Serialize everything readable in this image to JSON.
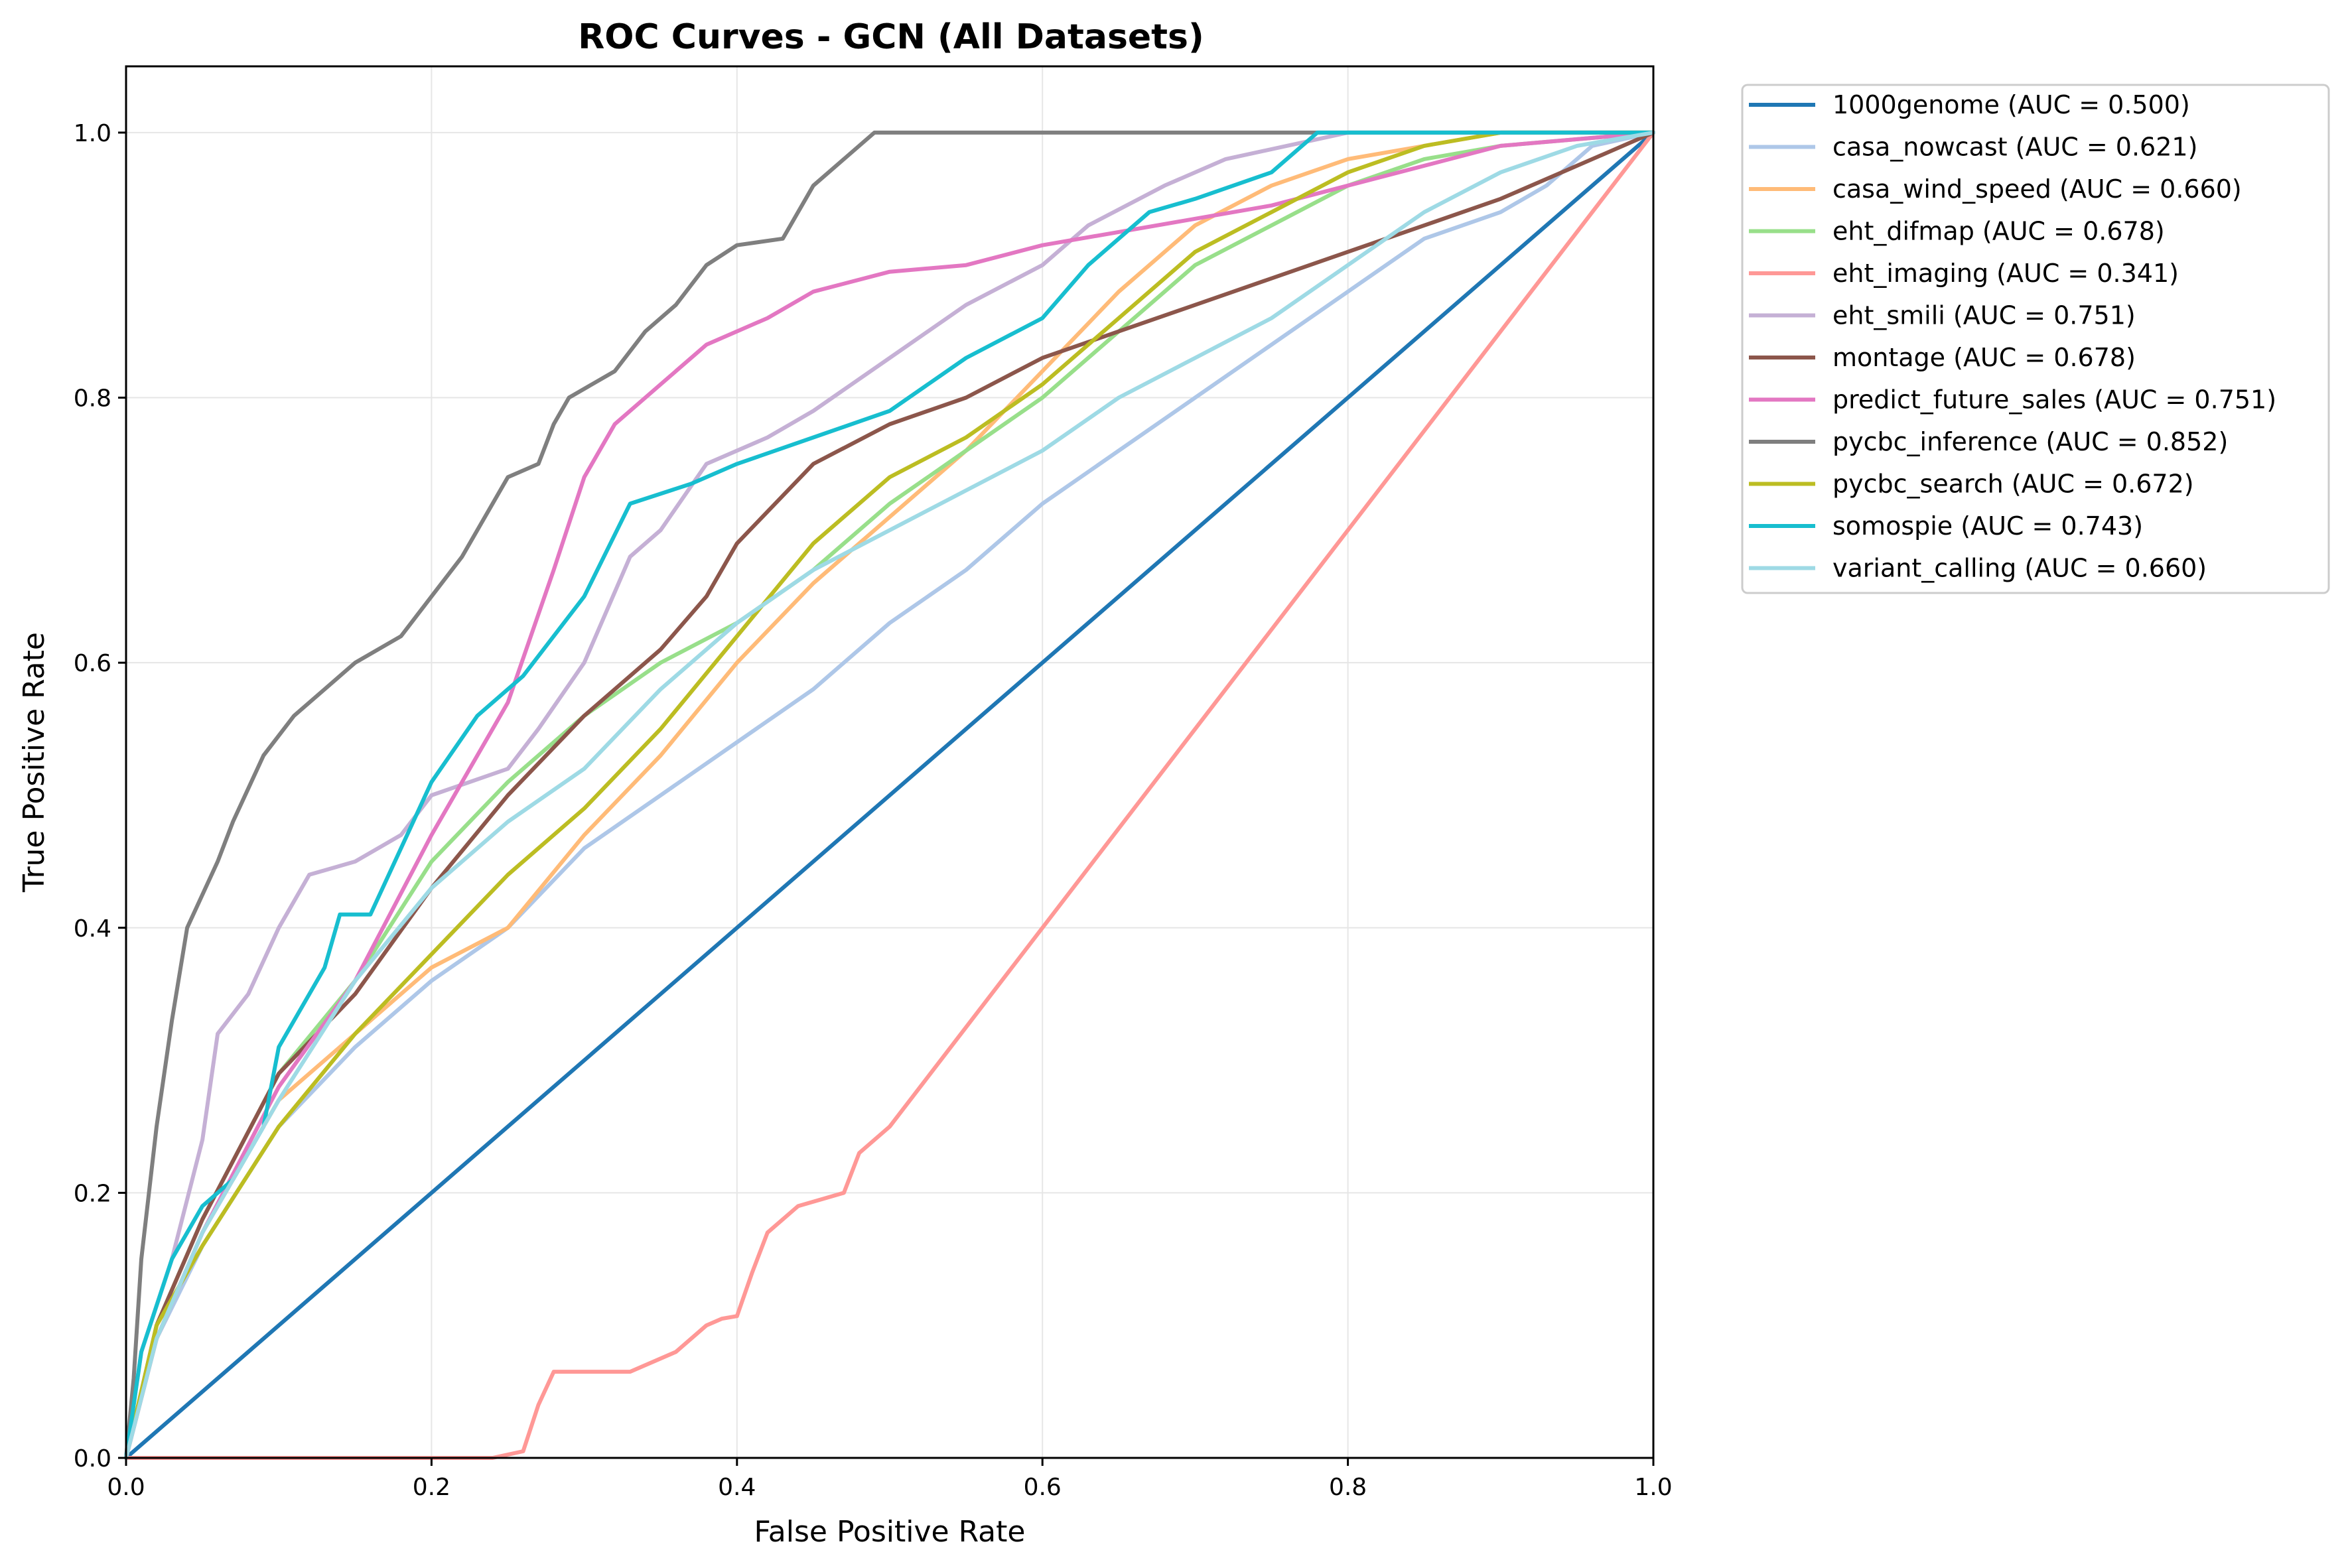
{
  "chart_data": {
    "type": "line",
    "title": "ROC Curves - GCN (All Datasets)",
    "xlabel": "False Positive Rate",
    "ylabel": "True Positive Rate",
    "xlim": [
      0.0,
      1.0
    ],
    "ylim": [
      0.0,
      1.05
    ],
    "xticks": [
      "0.0",
      "0.2",
      "0.4",
      "0.6",
      "0.8",
      "1.0"
    ],
    "yticks": [
      "0.0",
      "0.2",
      "0.4",
      "0.6",
      "0.8",
      "1.0"
    ],
    "grid": true,
    "legend_position": "outside-upper-right",
    "series": [
      {
        "name": "1000genome (AUC = 0.500)",
        "color": "#1f77b4",
        "points": [
          [
            0,
            0
          ],
          [
            1,
            1
          ]
        ]
      },
      {
        "name": "casa_nowcast (AUC = 0.621)",
        "color": "#aec7e8",
        "points": [
          [
            0,
            0
          ],
          [
            0.02,
            0.09
          ],
          [
            0.05,
            0.16
          ],
          [
            0.1,
            0.25
          ],
          [
            0.15,
            0.31
          ],
          [
            0.2,
            0.36
          ],
          [
            0.25,
            0.4
          ],
          [
            0.3,
            0.46
          ],
          [
            0.35,
            0.5
          ],
          [
            0.4,
            0.54
          ],
          [
            0.45,
            0.58
          ],
          [
            0.5,
            0.63
          ],
          [
            0.55,
            0.67
          ],
          [
            0.6,
            0.72
          ],
          [
            0.65,
            0.76
          ],
          [
            0.7,
            0.8
          ],
          [
            0.75,
            0.84
          ],
          [
            0.8,
            0.88
          ],
          [
            0.85,
            0.92
          ],
          [
            0.9,
            0.94
          ],
          [
            0.93,
            0.96
          ],
          [
            0.96,
            0.99
          ],
          [
            1,
            1
          ]
        ]
      },
      {
        "name": "casa_wind_speed (AUC = 0.660)",
        "color": "#ffbb78",
        "points": [
          [
            0,
            0
          ],
          [
            0.02,
            0.09
          ],
          [
            0.05,
            0.17
          ],
          [
            0.1,
            0.27
          ],
          [
            0.15,
            0.32
          ],
          [
            0.2,
            0.37
          ],
          [
            0.25,
            0.4
          ],
          [
            0.3,
            0.47
          ],
          [
            0.35,
            0.53
          ],
          [
            0.4,
            0.6
          ],
          [
            0.45,
            0.66
          ],
          [
            0.5,
            0.71
          ],
          [
            0.55,
            0.76
          ],
          [
            0.6,
            0.82
          ],
          [
            0.65,
            0.88
          ],
          [
            0.7,
            0.93
          ],
          [
            0.75,
            0.96
          ],
          [
            0.8,
            0.98
          ],
          [
            0.85,
            0.99
          ],
          [
            0.9,
            1.0
          ],
          [
            1,
            1
          ]
        ]
      },
      {
        "name": "eht_difmap (AUC = 0.678)",
        "color": "#98df8a",
        "points": [
          [
            0,
            0
          ],
          [
            0.02,
            0.1
          ],
          [
            0.05,
            0.18
          ],
          [
            0.1,
            0.29
          ],
          [
            0.15,
            0.36
          ],
          [
            0.2,
            0.45
          ],
          [
            0.25,
            0.51
          ],
          [
            0.3,
            0.56
          ],
          [
            0.35,
            0.6
          ],
          [
            0.4,
            0.63
          ],
          [
            0.45,
            0.67
          ],
          [
            0.5,
            0.72
          ],
          [
            0.55,
            0.76
          ],
          [
            0.6,
            0.8
          ],
          [
            0.65,
            0.85
          ],
          [
            0.7,
            0.9
          ],
          [
            0.75,
            0.93
          ],
          [
            0.8,
            0.96
          ],
          [
            0.85,
            0.98
          ],
          [
            0.9,
            0.99
          ],
          [
            1,
            1
          ]
        ]
      },
      {
        "name": "eht_imaging (AUC = 0.341)",
        "color": "#ff9896",
        "points": [
          [
            0,
            0
          ],
          [
            0.24,
            0.0
          ],
          [
            0.26,
            0.005
          ],
          [
            0.27,
            0.04
          ],
          [
            0.28,
            0.065
          ],
          [
            0.33,
            0.065
          ],
          [
            0.36,
            0.08
          ],
          [
            0.38,
            0.1
          ],
          [
            0.39,
            0.105
          ],
          [
            0.4,
            0.107
          ],
          [
            0.41,
            0.14
          ],
          [
            0.42,
            0.17
          ],
          [
            0.44,
            0.19
          ],
          [
            0.47,
            0.2
          ],
          [
            0.48,
            0.23
          ],
          [
            0.5,
            0.25
          ],
          [
            0.6,
            0.4
          ],
          [
            0.7,
            0.55
          ],
          [
            0.8,
            0.7
          ],
          [
            0.9,
            0.85
          ],
          [
            1,
            1
          ]
        ]
      },
      {
        "name": "eht_smili (AUC = 0.751)",
        "color": "#c5b0d5",
        "points": [
          [
            0,
            0
          ],
          [
            0.01,
            0.08
          ],
          [
            0.03,
            0.15
          ],
          [
            0.05,
            0.24
          ],
          [
            0.06,
            0.32
          ],
          [
            0.08,
            0.35
          ],
          [
            0.1,
            0.4
          ],
          [
            0.12,
            0.44
          ],
          [
            0.15,
            0.45
          ],
          [
            0.18,
            0.47
          ],
          [
            0.2,
            0.5
          ],
          [
            0.25,
            0.52
          ],
          [
            0.27,
            0.55
          ],
          [
            0.3,
            0.6
          ],
          [
            0.33,
            0.68
          ],
          [
            0.35,
            0.7
          ],
          [
            0.38,
            0.75
          ],
          [
            0.42,
            0.77
          ],
          [
            0.45,
            0.79
          ],
          [
            0.5,
            0.83
          ],
          [
            0.55,
            0.87
          ],
          [
            0.6,
            0.9
          ],
          [
            0.63,
            0.93
          ],
          [
            0.68,
            0.96
          ],
          [
            0.72,
            0.98
          ],
          [
            0.8,
            1.0
          ],
          [
            1,
            1
          ]
        ]
      },
      {
        "name": "montage (AUC = 0.678)",
        "color": "#8c564b",
        "points": [
          [
            0,
            0
          ],
          [
            0.02,
            0.1
          ],
          [
            0.05,
            0.18
          ],
          [
            0.1,
            0.29
          ],
          [
            0.15,
            0.35
          ],
          [
            0.2,
            0.43
          ],
          [
            0.25,
            0.5
          ],
          [
            0.3,
            0.56
          ],
          [
            0.35,
            0.61
          ],
          [
            0.38,
            0.65
          ],
          [
            0.4,
            0.69
          ],
          [
            0.45,
            0.75
          ],
          [
            0.5,
            0.78
          ],
          [
            0.55,
            0.8
          ],
          [
            0.6,
            0.83
          ],
          [
            0.65,
            0.85
          ],
          [
            0.7,
            0.87
          ],
          [
            0.75,
            0.89
          ],
          [
            0.8,
            0.91
          ],
          [
            0.85,
            0.93
          ],
          [
            0.9,
            0.95
          ],
          [
            0.95,
            0.975
          ],
          [
            1,
            1
          ]
        ]
      },
      {
        "name": "predict_future_sales (AUC = 0.751)",
        "color": "#e377c2",
        "points": [
          [
            0,
            0
          ],
          [
            0.02,
            0.09
          ],
          [
            0.05,
            0.17
          ],
          [
            0.1,
            0.28
          ],
          [
            0.15,
            0.36
          ],
          [
            0.2,
            0.47
          ],
          [
            0.25,
            0.57
          ],
          [
            0.28,
            0.67
          ],
          [
            0.3,
            0.74
          ],
          [
            0.32,
            0.78
          ],
          [
            0.35,
            0.81
          ],
          [
            0.38,
            0.84
          ],
          [
            0.42,
            0.86
          ],
          [
            0.45,
            0.88
          ],
          [
            0.5,
            0.895
          ],
          [
            0.55,
            0.9
          ],
          [
            0.6,
            0.915
          ],
          [
            0.65,
            0.925
          ],
          [
            0.7,
            0.935
          ],
          [
            0.75,
            0.945
          ],
          [
            0.8,
            0.96
          ],
          [
            0.85,
            0.975
          ],
          [
            0.9,
            0.99
          ],
          [
            1,
            1
          ]
        ]
      },
      {
        "name": "pycbc_inference (AUC = 0.852)",
        "color": "#7f7f7f",
        "points": [
          [
            0,
            0
          ],
          [
            0.005,
            0.06
          ],
          [
            0.01,
            0.15
          ],
          [
            0.02,
            0.25
          ],
          [
            0.03,
            0.33
          ],
          [
            0.04,
            0.4
          ],
          [
            0.06,
            0.45
          ],
          [
            0.07,
            0.48
          ],
          [
            0.09,
            0.53
          ],
          [
            0.11,
            0.56
          ],
          [
            0.13,
            0.58
          ],
          [
            0.15,
            0.6
          ],
          [
            0.18,
            0.62
          ],
          [
            0.2,
            0.65
          ],
          [
            0.22,
            0.68
          ],
          [
            0.25,
            0.74
          ],
          [
            0.27,
            0.75
          ],
          [
            0.28,
            0.78
          ],
          [
            0.29,
            0.8
          ],
          [
            0.32,
            0.82
          ],
          [
            0.34,
            0.85
          ],
          [
            0.36,
            0.87
          ],
          [
            0.38,
            0.9
          ],
          [
            0.4,
            0.915
          ],
          [
            0.43,
            0.92
          ],
          [
            0.45,
            0.96
          ],
          [
            0.47,
            0.98
          ],
          [
            0.49,
            1.0
          ],
          [
            1,
            1
          ]
        ]
      },
      {
        "name": "pycbc_search (AUC = 0.672)",
        "color": "#bcbd22",
        "points": [
          [
            0,
            0
          ],
          [
            0.02,
            0.1
          ],
          [
            0.05,
            0.16
          ],
          [
            0.1,
            0.25
          ],
          [
            0.15,
            0.32
          ],
          [
            0.2,
            0.38
          ],
          [
            0.25,
            0.44
          ],
          [
            0.3,
            0.49
          ],
          [
            0.35,
            0.55
          ],
          [
            0.4,
            0.62
          ],
          [
            0.45,
            0.69
          ],
          [
            0.5,
            0.74
          ],
          [
            0.55,
            0.77
          ],
          [
            0.6,
            0.81
          ],
          [
            0.65,
            0.86
          ],
          [
            0.7,
            0.91
          ],
          [
            0.75,
            0.94
          ],
          [
            0.8,
            0.97
          ],
          [
            0.85,
            0.99
          ],
          [
            0.9,
            1.0
          ],
          [
            1,
            1
          ]
        ]
      },
      {
        "name": "somospie (AUC = 0.743)",
        "color": "#17becf",
        "points": [
          [
            0,
            0
          ],
          [
            0.01,
            0.08
          ],
          [
            0.03,
            0.15
          ],
          [
            0.05,
            0.19
          ],
          [
            0.07,
            0.21
          ],
          [
            0.09,
            0.25
          ],
          [
            0.1,
            0.31
          ],
          [
            0.13,
            0.37
          ],
          [
            0.14,
            0.41
          ],
          [
            0.16,
            0.41
          ],
          [
            0.18,
            0.46
          ],
          [
            0.2,
            0.51
          ],
          [
            0.23,
            0.56
          ],
          [
            0.26,
            0.59
          ],
          [
            0.3,
            0.65
          ],
          [
            0.33,
            0.72
          ],
          [
            0.37,
            0.735
          ],
          [
            0.4,
            0.75
          ],
          [
            0.45,
            0.77
          ],
          [
            0.5,
            0.79
          ],
          [
            0.55,
            0.83
          ],
          [
            0.6,
            0.86
          ],
          [
            0.63,
            0.9
          ],
          [
            0.67,
            0.94
          ],
          [
            0.7,
            0.95
          ],
          [
            0.75,
            0.97
          ],
          [
            0.78,
            1.0
          ],
          [
            1,
            1
          ]
        ]
      },
      {
        "name": "variant_calling (AUC = 0.660)",
        "color": "#9edae5",
        "points": [
          [
            0,
            0
          ],
          [
            0.02,
            0.09
          ],
          [
            0.05,
            0.17
          ],
          [
            0.1,
            0.27
          ],
          [
            0.15,
            0.36
          ],
          [
            0.2,
            0.43
          ],
          [
            0.25,
            0.48
          ],
          [
            0.3,
            0.52
          ],
          [
            0.35,
            0.58
          ],
          [
            0.4,
            0.63
          ],
          [
            0.45,
            0.67
          ],
          [
            0.5,
            0.7
          ],
          [
            0.55,
            0.73
          ],
          [
            0.6,
            0.76
          ],
          [
            0.65,
            0.8
          ],
          [
            0.7,
            0.83
          ],
          [
            0.75,
            0.86
          ],
          [
            0.8,
            0.9
          ],
          [
            0.85,
            0.94
          ],
          [
            0.9,
            0.97
          ],
          [
            0.95,
            0.99
          ],
          [
            1,
            1
          ]
        ]
      }
    ]
  }
}
